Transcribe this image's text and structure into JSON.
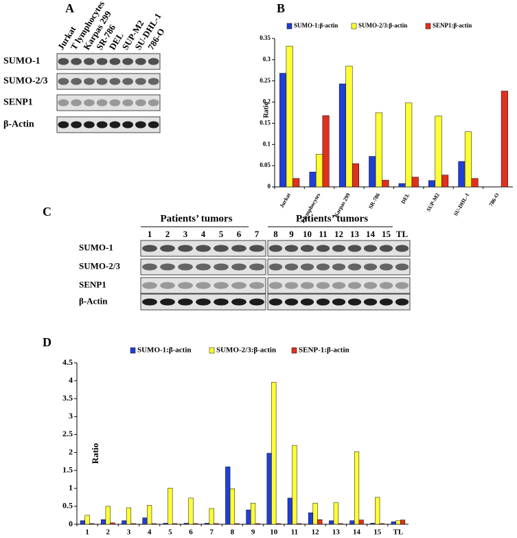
{
  "panels": {
    "A": {
      "letter": "A",
      "lanes": [
        "Jurkat",
        "T lymphocytes",
        "Karpas 299",
        "SR-786",
        "DEL",
        "SUP-M2",
        "SU-DHL-1",
        "786-O"
      ],
      "rows": [
        "SUMO-1",
        "SUMO-2/3",
        "SENP1",
        "β-Actin"
      ]
    },
    "C": {
      "letter": "C",
      "groups": [
        {
          "title": "Patients’ tumors",
          "lanes": [
            "1",
            "2",
            "3",
            "4",
            "5",
            "6",
            "7"
          ]
        },
        {
          "title": "Patients’ tumors",
          "lanes": [
            "8",
            "9",
            "10",
            "11",
            "12",
            "13",
            "14",
            "15",
            "TL"
          ]
        }
      ],
      "rows": [
        "SUMO-1",
        "SUMO-2/3",
        "SENP1",
        "β-Actin"
      ]
    }
  },
  "chart_data": [
    {
      "type": "bar",
      "panel": "B",
      "ylabel": "Ratio",
      "categories": [
        "Jurkat",
        "T lymphocytes",
        "Karpas 299",
        "SR-786",
        "DEL",
        "SUP-M2",
        "SU-DHL-1",
        "786-O"
      ],
      "series": [
        {
          "name": "SUMO-1:β-actin",
          "color": "#1f3fd6",
          "values": [
            0.268,
            0.035,
            0.243,
            0.072,
            0.008,
            0.015,
            0.06,
            0
          ]
        },
        {
          "name": "SUMO-2/3:β-actin",
          "color": "#ffff33",
          "values": [
            0.332,
            0.077,
            0.285,
            0.175,
            0.198,
            0.167,
            0.13,
            0
          ]
        },
        {
          "name": "SENP1:β-actin",
          "color": "#e0301e",
          "values": [
            0.02,
            0.168,
            0.055,
            0.016,
            0.023,
            0.028,
            0.02,
            0.226
          ]
        }
      ],
      "ylim": [
        0,
        0.35
      ],
      "yticks": [
        0,
        0.05,
        0.1,
        0.15,
        0.2,
        0.25,
        0.3,
        0.35
      ]
    },
    {
      "type": "bar",
      "panel": "D",
      "ylabel": "Ratio",
      "categories": [
        "1",
        "2",
        "3",
        "4",
        "5",
        "6",
        "7",
        "8",
        "9",
        "10",
        "11",
        "12",
        "13",
        "14",
        "15",
        "TL"
      ],
      "series": [
        {
          "name": "SUMO-1:β-actin",
          "color": "#1f3fd6",
          "values": [
            0.1,
            0.13,
            0.1,
            0.18,
            0.03,
            0.03,
            0.03,
            1.6,
            0.4,
            1.98,
            0.73,
            0.32,
            0.1,
            0.1,
            0.03,
            0.07
          ]
        },
        {
          "name": "SUMO-2/3:β-actin",
          "color": "#ffff33",
          "values": [
            0.25,
            0.5,
            0.46,
            0.53,
            1.01,
            0.73,
            0.44,
            0.99,
            0.59,
            3.96,
            2.2,
            0.59,
            0.6,
            2.02,
            0.75,
            0.1
          ]
        },
        {
          "name": "SENP-1:β-actin",
          "color": "#e0301e",
          "values": [
            0.02,
            0.04,
            0.02,
            0.02,
            0.02,
            0.02,
            0.02,
            0.02,
            0.02,
            0.02,
            0.02,
            0.13,
            0.02,
            0.12,
            0.02,
            0.12
          ]
        }
      ],
      "ylim": [
        0,
        4.5
      ],
      "yticks": [
        0,
        0.5,
        1,
        1.5,
        2,
        2.5,
        3,
        3.5,
        4,
        4.5
      ]
    }
  ]
}
